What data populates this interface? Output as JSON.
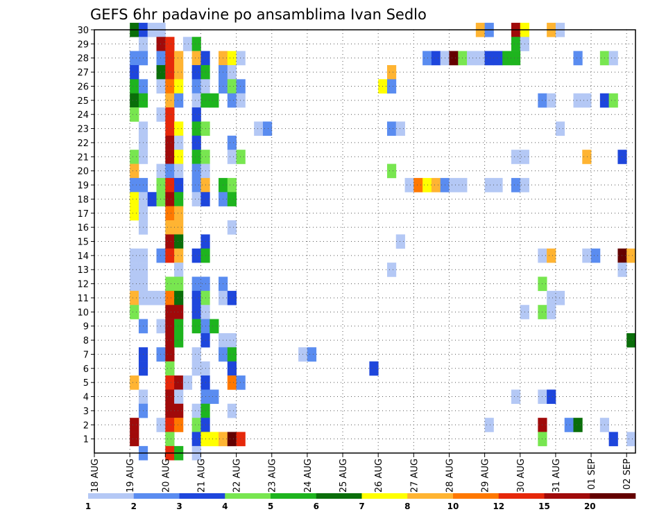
{
  "chart_data": {
    "type": "heatmap",
    "title": "GEFS 6hr padavine po ansamblima Ivan Sedlo",
    "x_tick_labels": [
      "18 AUG",
      "19 AUG",
      "20 AUG",
      "21 AUG",
      "22 AUG",
      "23 AUG",
      "24 AUG",
      "25 AUG",
      "26 AUG",
      "27 AUG",
      "28 AUG",
      "29 AUG",
      "30 AUG",
      "31 AUG",
      "01 SEP",
      "02 SEP"
    ],
    "x_range_days": [
      0,
      15.25
    ],
    "x_step_days": 0.25,
    "y_tick_labels": [
      "1",
      "2",
      "3",
      "4",
      "5",
      "6",
      "7",
      "8",
      "9",
      "10",
      "11",
      "12",
      "13",
      "14",
      "15",
      "16",
      "17",
      "18",
      "19",
      "20",
      "21",
      "22",
      "23",
      "24",
      "25",
      "26",
      "27",
      "28",
      "29",
      "30"
    ],
    "y_range": [
      0,
      30
    ],
    "grid": true,
    "colorbar": {
      "tick_labels": [
        "1",
        "2",
        "3",
        "4",
        "5",
        "6",
        "7",
        "8",
        "10",
        "12",
        "15",
        "20"
      ],
      "colors": [
        "#b4c8f5",
        "#5a8cf0",
        "#1e46dc",
        "#78e650",
        "#1eb41e",
        "#0a6e0a",
        "#ffff00",
        "#ffb432",
        "#ff7800",
        "#e6280a",
        "#a00a0a",
        "#640000"
      ]
    },
    "cells": [
      [
        1,
        30,
        6
      ],
      [
        1.25,
        30,
        3
      ],
      [
        1.5,
        30,
        1
      ],
      [
        1.75,
        30,
        1
      ],
      [
        10.75,
        30,
        8
      ],
      [
        11,
        30,
        2
      ],
      [
        11.75,
        30,
        11
      ],
      [
        12,
        30,
        7
      ],
      [
        12.75,
        30,
        8
      ],
      [
        13,
        30,
        1
      ],
      [
        1.25,
        29,
        1
      ],
      [
        1.75,
        29,
        11
      ],
      [
        2,
        29,
        10
      ],
      [
        2.5,
        29,
        1
      ],
      [
        2.75,
        29,
        5
      ],
      [
        11.75,
        29,
        5
      ],
      [
        12,
        29,
        1
      ],
      [
        1,
        28,
        2
      ],
      [
        1.25,
        28,
        2
      ],
      [
        1.75,
        28,
        2
      ],
      [
        2,
        28,
        10
      ],
      [
        2.25,
        28,
        8
      ],
      [
        2.75,
        28,
        8
      ],
      [
        3,
        28,
        3
      ],
      [
        3.5,
        28,
        8
      ],
      [
        3.75,
        28,
        7
      ],
      [
        4,
        28,
        1
      ],
      [
        9.25,
        28,
        2
      ],
      [
        9.5,
        28,
        3
      ],
      [
        9.75,
        28,
        1
      ],
      [
        10,
        28,
        12
      ],
      [
        10.25,
        28,
        4
      ],
      [
        10.5,
        28,
        1
      ],
      [
        10.75,
        28,
        1
      ],
      [
        11,
        28,
        3
      ],
      [
        11.25,
        28,
        3
      ],
      [
        11.5,
        28,
        5
      ],
      [
        11.75,
        28,
        5
      ],
      [
        13.5,
        28,
        2
      ],
      [
        14.25,
        28,
        4
      ],
      [
        14.5,
        28,
        1
      ],
      [
        1,
        27,
        3
      ],
      [
        1.75,
        27,
        6
      ],
      [
        2,
        27,
        10
      ],
      [
        2.25,
        27,
        8
      ],
      [
        2.75,
        27,
        3
      ],
      [
        3,
        27,
        5
      ],
      [
        3.5,
        27,
        2
      ],
      [
        3.75,
        27,
        1
      ],
      [
        8.25,
        27,
        8
      ],
      [
        1,
        26,
        5
      ],
      [
        1.25,
        26,
        2
      ],
      [
        1.75,
        26,
        1
      ],
      [
        2,
        26,
        9
      ],
      [
        2.25,
        26,
        7
      ],
      [
        2.75,
        26,
        2
      ],
      [
        3,
        26,
        1
      ],
      [
        3.5,
        26,
        2
      ],
      [
        3.75,
        26,
        4
      ],
      [
        4,
        26,
        2
      ],
      [
        8,
        26,
        7
      ],
      [
        8.25,
        26,
        2
      ],
      [
        1,
        25,
        6
      ],
      [
        1.25,
        25,
        5
      ],
      [
        2,
        25,
        8
      ],
      [
        2.25,
        25,
        2
      ],
      [
        2.75,
        25,
        1
      ],
      [
        3,
        25,
        5
      ],
      [
        3.25,
        25,
        5
      ],
      [
        3.75,
        25,
        2
      ],
      [
        4,
        25,
        1
      ],
      [
        12.5,
        25,
        2
      ],
      [
        12.75,
        25,
        1
      ],
      [
        13.5,
        25,
        1
      ],
      [
        13.75,
        25,
        1
      ],
      [
        14.25,
        25,
        3
      ],
      [
        14.5,
        25,
        4
      ],
      [
        1,
        24,
        4
      ],
      [
        1.75,
        24,
        1
      ],
      [
        2,
        24,
        10
      ],
      [
        2.75,
        24,
        3
      ],
      [
        1.25,
        23,
        1
      ],
      [
        2,
        23,
        10
      ],
      [
        2.25,
        23,
        7
      ],
      [
        2.75,
        23,
        5
      ],
      [
        3,
        23,
        4
      ],
      [
        4.5,
        23,
        1
      ],
      [
        4.75,
        23,
        2
      ],
      [
        8.25,
        23,
        2
      ],
      [
        8.5,
        23,
        1
      ],
      [
        13,
        23,
        1
      ],
      [
        1.25,
        22,
        1
      ],
      [
        2,
        22,
        11
      ],
      [
        2.25,
        22,
        1
      ],
      [
        2.75,
        22,
        3
      ],
      [
        3.75,
        22,
        2
      ],
      [
        1,
        21,
        4
      ],
      [
        1.25,
        21,
        1
      ],
      [
        2,
        21,
        11
      ],
      [
        2.25,
        21,
        7
      ],
      [
        2.75,
        21,
        5
      ],
      [
        3,
        21,
        4
      ],
      [
        3.75,
        21,
        1
      ],
      [
        4,
        21,
        4
      ],
      [
        11.75,
        21,
        1
      ],
      [
        12,
        21,
        1
      ],
      [
        13.75,
        21,
        8
      ],
      [
        14.75,
        21,
        3
      ],
      [
        1,
        20,
        8
      ],
      [
        1.75,
        20,
        1
      ],
      [
        2,
        20,
        2
      ],
      [
        2.25,
        20,
        1
      ],
      [
        2.75,
        20,
        2
      ],
      [
        3,
        20,
        1
      ],
      [
        8.25,
        20,
        4
      ],
      [
        1,
        19,
        2
      ],
      [
        1.25,
        19,
        2
      ],
      [
        1.75,
        19,
        4
      ],
      [
        2,
        19,
        10
      ],
      [
        2.25,
        19,
        3
      ],
      [
        2.75,
        19,
        2
      ],
      [
        3,
        19,
        8
      ],
      [
        3.5,
        19,
        5
      ],
      [
        3.75,
        19,
        4
      ],
      [
        8.75,
        19,
        1
      ],
      [
        9,
        19,
        9
      ],
      [
        9.25,
        19,
        7
      ],
      [
        9.5,
        19,
        8
      ],
      [
        9.75,
        19,
        2
      ],
      [
        10,
        19,
        1
      ],
      [
        10.25,
        19,
        1
      ],
      [
        11,
        19,
        1
      ],
      [
        11.25,
        19,
        1
      ],
      [
        11.75,
        19,
        2
      ],
      [
        12,
        19,
        1
      ],
      [
        1,
        18,
        7
      ],
      [
        1.25,
        18,
        1
      ],
      [
        1.5,
        18,
        3
      ],
      [
        1.75,
        18,
        4
      ],
      [
        2,
        18,
        11
      ],
      [
        2.25,
        18,
        5
      ],
      [
        2.75,
        18,
        1
      ],
      [
        3,
        18,
        3
      ],
      [
        3.5,
        18,
        2
      ],
      [
        3.75,
        18,
        5
      ],
      [
        1,
        17,
        7
      ],
      [
        1.25,
        17,
        1
      ],
      [
        2,
        17,
        9
      ],
      [
        2.25,
        17,
        8
      ],
      [
        1.25,
        16,
        1
      ],
      [
        2,
        16,
        8
      ],
      [
        2.25,
        16,
        8
      ],
      [
        3.75,
        16,
        1
      ],
      [
        2,
        15,
        11
      ],
      [
        2.25,
        15,
        6
      ],
      [
        3,
        15,
        3
      ],
      [
        8.5,
        15,
        1
      ],
      [
        1,
        14,
        1
      ],
      [
        1.25,
        14,
        1
      ],
      [
        1.75,
        14,
        2
      ],
      [
        2,
        14,
        10
      ],
      [
        2.25,
        14,
        8
      ],
      [
        2.75,
        14,
        3
      ],
      [
        3,
        14,
        5
      ],
      [
        12.5,
        14,
        1
      ],
      [
        12.75,
        14,
        8
      ],
      [
        13.75,
        14,
        1
      ],
      [
        14,
        14,
        2
      ],
      [
        14.75,
        14,
        12
      ],
      [
        15,
        14,
        8
      ],
      [
        1,
        13,
        1
      ],
      [
        1.25,
        13,
        1
      ],
      [
        2.25,
        13,
        1
      ],
      [
        8.25,
        13,
        1
      ],
      [
        14.75,
        13,
        1
      ],
      [
        1,
        12,
        1
      ],
      [
        1.25,
        12,
        1
      ],
      [
        2,
        12,
        4
      ],
      [
        2.25,
        12,
        4
      ],
      [
        2.75,
        12,
        2
      ],
      [
        3,
        12,
        2
      ],
      [
        3.5,
        12,
        2
      ],
      [
        12.5,
        12,
        4
      ],
      [
        1,
        11,
        8
      ],
      [
        1.25,
        11,
        1
      ],
      [
        1.5,
        11,
        1
      ],
      [
        1.75,
        11,
        1
      ],
      [
        2,
        11,
        9
      ],
      [
        2.25,
        11,
        6
      ],
      [
        2.75,
        11,
        3
      ],
      [
        3,
        11,
        4
      ],
      [
        3.5,
        11,
        1
      ],
      [
        3.75,
        11,
        3
      ],
      [
        12.75,
        11,
        1
      ],
      [
        13,
        11,
        1
      ],
      [
        1,
        10,
        4
      ],
      [
        2,
        10,
        11
      ],
      [
        2.25,
        10,
        11
      ],
      [
        2.75,
        10,
        3
      ],
      [
        3,
        10,
        1
      ],
      [
        12,
        10,
        1
      ],
      [
        12.5,
        10,
        4
      ],
      [
        12.75,
        10,
        1
      ],
      [
        1.25,
        9,
        2
      ],
      [
        1.75,
        9,
        1
      ],
      [
        2,
        9,
        11
      ],
      [
        2.25,
        9,
        5
      ],
      [
        2.75,
        9,
        5
      ],
      [
        3,
        9,
        2
      ],
      [
        3.25,
        9,
        5
      ],
      [
        2,
        8,
        11
      ],
      [
        2.25,
        8,
        5
      ],
      [
        3,
        8,
        3
      ],
      [
        3.5,
        8,
        1
      ],
      [
        3.75,
        8,
        1
      ],
      [
        15,
        8,
        6
      ],
      [
        1.25,
        7,
        3
      ],
      [
        1.75,
        7,
        2
      ],
      [
        2,
        7,
        11
      ],
      [
        2.75,
        7,
        1
      ],
      [
        3.5,
        7,
        2
      ],
      [
        3.75,
        7,
        5
      ],
      [
        5.75,
        7,
        1
      ],
      [
        6,
        7,
        2
      ],
      [
        1.25,
        6,
        3
      ],
      [
        2,
        6,
        4
      ],
      [
        2.75,
        6,
        1
      ],
      [
        3,
        6,
        1
      ],
      [
        3.75,
        6,
        3
      ],
      [
        7.75,
        6,
        3
      ],
      [
        1,
        5,
        8
      ],
      [
        2,
        5,
        10
      ],
      [
        2.25,
        5,
        11
      ],
      [
        2.5,
        5,
        1
      ],
      [
        3,
        5,
        3
      ],
      [
        3.75,
        5,
        9
      ],
      [
        4,
        5,
        2
      ],
      [
        1.25,
        4,
        1
      ],
      [
        2,
        4,
        11
      ],
      [
        2.25,
        4,
        1
      ],
      [
        3,
        4,
        2
      ],
      [
        3.25,
        4,
        2
      ],
      [
        11.75,
        4,
        1
      ],
      [
        12.5,
        4,
        1
      ],
      [
        12.75,
        4,
        3
      ],
      [
        1.25,
        3,
        2
      ],
      [
        2,
        3,
        11
      ],
      [
        2.25,
        3,
        11
      ],
      [
        2.75,
        3,
        1
      ],
      [
        3,
        3,
        5
      ],
      [
        3.75,
        3,
        1
      ],
      [
        1,
        2,
        11
      ],
      [
        1.75,
        2,
        1
      ],
      [
        2,
        2,
        10
      ],
      [
        2.25,
        2,
        9
      ],
      [
        2.75,
        2,
        4
      ],
      [
        3,
        2,
        3
      ],
      [
        11,
        2,
        1
      ],
      [
        12.5,
        2,
        11
      ],
      [
        13.25,
        2,
        2
      ],
      [
        13.5,
        2,
        6
      ],
      [
        14.25,
        2,
        1
      ],
      [
        1,
        1,
        11
      ],
      [
        2,
        1,
        4
      ],
      [
        2.75,
        1,
        3
      ],
      [
        3,
        1,
        7
      ],
      [
        3.25,
        1,
        7
      ],
      [
        3.5,
        1,
        8
      ],
      [
        3.75,
        1,
        12
      ],
      [
        4,
        1,
        10
      ],
      [
        12.5,
        1,
        4
      ],
      [
        14.5,
        1,
        3
      ],
      [
        15,
        1,
        1
      ],
      [
        1.25,
        0,
        2
      ],
      [
        2,
        0,
        10
      ],
      [
        2.25,
        0,
        5
      ],
      [
        2.75,
        0,
        1
      ]
    ]
  }
}
